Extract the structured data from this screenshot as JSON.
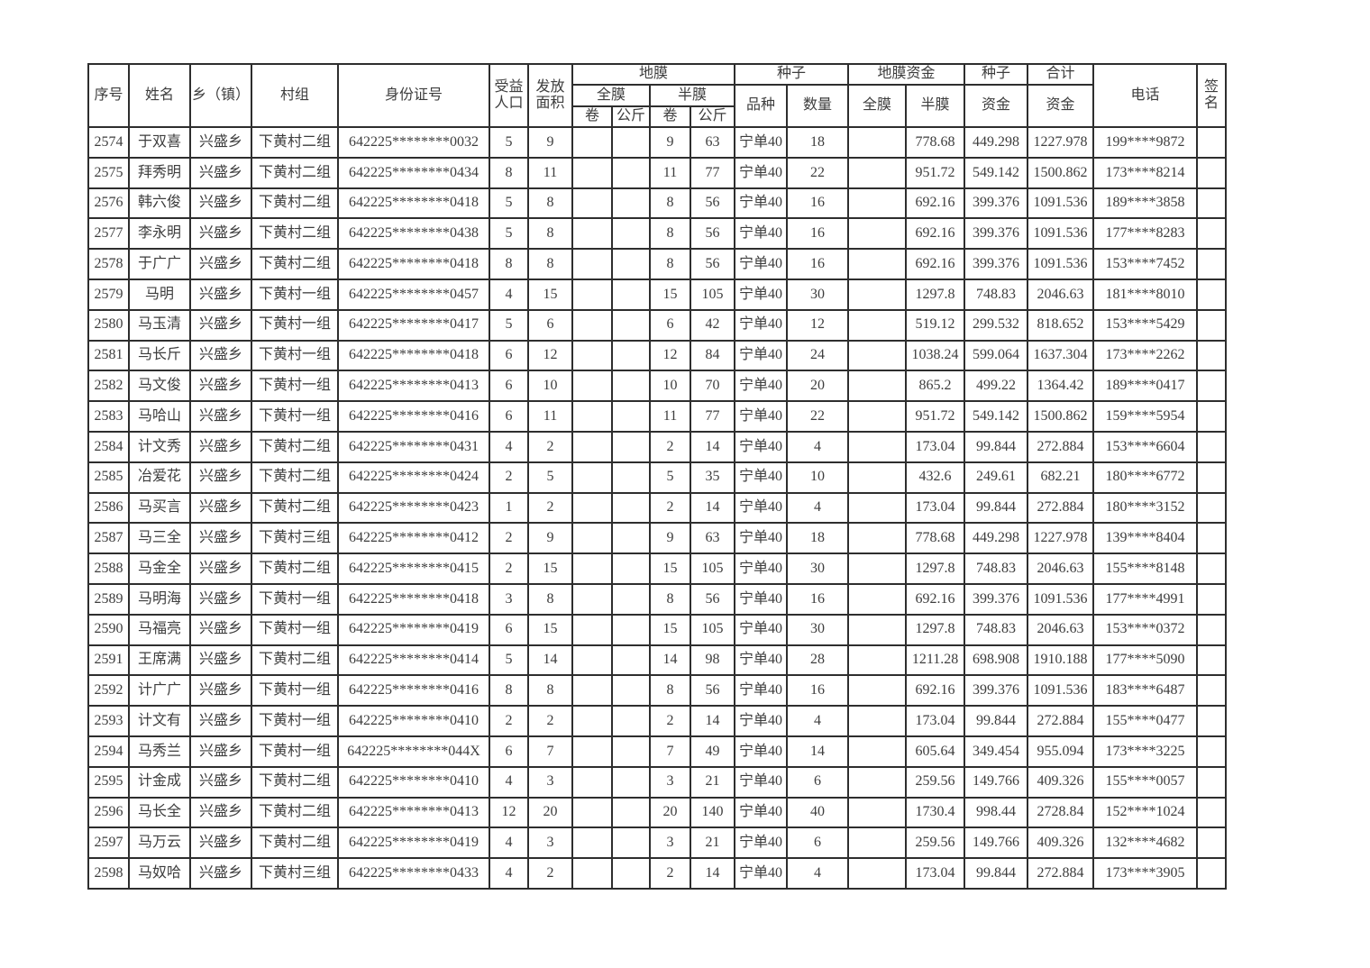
{
  "table": {
    "header": {
      "serial": "序号",
      "name": "姓名",
      "township": "乡（镇）",
      "village": "村组",
      "id_number": "身份证号",
      "beneficiary_population": "受益\n人口",
      "distribution_area": "发放\n面积",
      "plastic_film": "地膜",
      "full_film": "全膜",
      "half_film": "半膜",
      "roll": "卷",
      "kg": "公斤",
      "seed": "种子",
      "variety": "品种",
      "quantity": "数量",
      "film_fund": "地膜资金",
      "fund": "资金",
      "total": "合计",
      "phone": "电话",
      "signature": "签\n名"
    },
    "rows": [
      [
        "2574",
        "于双喜",
        "兴盛乡",
        "下黄村二组",
        "642225********0032",
        "5",
        "9",
        "",
        "",
        "9",
        "63",
        "宁单40",
        "18",
        "",
        "778.68",
        "449.298",
        "1227.978",
        "199****9872",
        ""
      ],
      [
        "2575",
        "拜秀明",
        "兴盛乡",
        "下黄村二组",
        "642225********0434",
        "8",
        "11",
        "",
        "",
        "11",
        "77",
        "宁单40",
        "22",
        "",
        "951.72",
        "549.142",
        "1500.862",
        "173****8214",
        ""
      ],
      [
        "2576",
        "韩六俊",
        "兴盛乡",
        "下黄村二组",
        "642225********0418",
        "5",
        "8",
        "",
        "",
        "8",
        "56",
        "宁单40",
        "16",
        "",
        "692.16",
        "399.376",
        "1091.536",
        "189****3858",
        ""
      ],
      [
        "2577",
        "李永明",
        "兴盛乡",
        "下黄村二组",
        "642225********0438",
        "5",
        "8",
        "",
        "",
        "8",
        "56",
        "宁单40",
        "16",
        "",
        "692.16",
        "399.376",
        "1091.536",
        "177****8283",
        ""
      ],
      [
        "2578",
        "于广广",
        "兴盛乡",
        "下黄村二组",
        "642225********0418",
        "8",
        "8",
        "",
        "",
        "8",
        "56",
        "宁单40",
        "16",
        "",
        "692.16",
        "399.376",
        "1091.536",
        "153****7452",
        ""
      ],
      [
        "2579",
        "马明",
        "兴盛乡",
        "下黄村一组",
        "642225********0457",
        "4",
        "15",
        "",
        "",
        "15",
        "105",
        "宁单40",
        "30",
        "",
        "1297.8",
        "748.83",
        "2046.63",
        "181****8010",
        ""
      ],
      [
        "2580",
        "马玉清",
        "兴盛乡",
        "下黄村一组",
        "642225********0417",
        "5",
        "6",
        "",
        "",
        "6",
        "42",
        "宁单40",
        "12",
        "",
        "519.12",
        "299.532",
        "818.652",
        "153****5429",
        ""
      ],
      [
        "2581",
        "马长斤",
        "兴盛乡",
        "下黄村一组",
        "642225********0418",
        "6",
        "12",
        "",
        "",
        "12",
        "84",
        "宁单40",
        "24",
        "",
        "1038.24",
        "599.064",
        "1637.304",
        "173****2262",
        ""
      ],
      [
        "2582",
        "马文俊",
        "兴盛乡",
        "下黄村一组",
        "642225********0413",
        "6",
        "10",
        "",
        "",
        "10",
        "70",
        "宁单40",
        "20",
        "",
        "865.2",
        "499.22",
        "1364.42",
        "189****0417",
        ""
      ],
      [
        "2583",
        "马哈山",
        "兴盛乡",
        "下黄村一组",
        "642225********0416",
        "6",
        "11",
        "",
        "",
        "11",
        "77",
        "宁单40",
        "22",
        "",
        "951.72",
        "549.142",
        "1500.862",
        "159****5954",
        ""
      ],
      [
        "2584",
        "计文秀",
        "兴盛乡",
        "下黄村二组",
        "642225********0431",
        "4",
        "2",
        "",
        "",
        "2",
        "14",
        "宁单40",
        "4",
        "",
        "173.04",
        "99.844",
        "272.884",
        "153****6604",
        ""
      ],
      [
        "2585",
        "冶爱花",
        "兴盛乡",
        "下黄村二组",
        "642225********0424",
        "2",
        "5",
        "",
        "",
        "5",
        "35",
        "宁单40",
        "10",
        "",
        "432.6",
        "249.61",
        "682.21",
        "180****6772",
        ""
      ],
      [
        "2586",
        "马买言",
        "兴盛乡",
        "下黄村二组",
        "642225********0423",
        "1",
        "2",
        "",
        "",
        "2",
        "14",
        "宁单40",
        "4",
        "",
        "173.04",
        "99.844",
        "272.884",
        "180****3152",
        ""
      ],
      [
        "2587",
        "马三全",
        "兴盛乡",
        "下黄村三组",
        "642225********0412",
        "2",
        "9",
        "",
        "",
        "9",
        "63",
        "宁单40",
        "18",
        "",
        "778.68",
        "449.298",
        "1227.978",
        "139****8404",
        ""
      ],
      [
        "2588",
        "马金全",
        "兴盛乡",
        "下黄村二组",
        "642225********0415",
        "2",
        "15",
        "",
        "",
        "15",
        "105",
        "宁单40",
        "30",
        "",
        "1297.8",
        "748.83",
        "2046.63",
        "155****8148",
        ""
      ],
      [
        "2589",
        "马明海",
        "兴盛乡",
        "下黄村一组",
        "642225********0418",
        "3",
        "8",
        "",
        "",
        "8",
        "56",
        "宁单40",
        "16",
        "",
        "692.16",
        "399.376",
        "1091.536",
        "177****4991",
        ""
      ],
      [
        "2590",
        "马福亮",
        "兴盛乡",
        "下黄村一组",
        "642225********0419",
        "6",
        "15",
        "",
        "",
        "15",
        "105",
        "宁单40",
        "30",
        "",
        "1297.8",
        "748.83",
        "2046.63",
        "153****0372",
        ""
      ],
      [
        "2591",
        "王席满",
        "兴盛乡",
        "下黄村二组",
        "642225********0414",
        "5",
        "14",
        "",
        "",
        "14",
        "98",
        "宁单40",
        "28",
        "",
        "1211.28",
        "698.908",
        "1910.188",
        "177****5090",
        ""
      ],
      [
        "2592",
        "计广广",
        "兴盛乡",
        "下黄村一组",
        "642225********0416",
        "8",
        "8",
        "",
        "",
        "8",
        "56",
        "宁单40",
        "16",
        "",
        "692.16",
        "399.376",
        "1091.536",
        "183****6487",
        ""
      ],
      [
        "2593",
        "计文有",
        "兴盛乡",
        "下黄村一组",
        "642225********0410",
        "2",
        "2",
        "",
        "",
        "2",
        "14",
        "宁单40",
        "4",
        "",
        "173.04",
        "99.844",
        "272.884",
        "155****0477",
        ""
      ],
      [
        "2594",
        "马秀兰",
        "兴盛乡",
        "下黄村一组",
        "642225********044X",
        "6",
        "7",
        "",
        "",
        "7",
        "49",
        "宁单40",
        "14",
        "",
        "605.64",
        "349.454",
        "955.094",
        "173****3225",
        ""
      ],
      [
        "2595",
        "计金成",
        "兴盛乡",
        "下黄村二组",
        "642225********0410",
        "4",
        "3",
        "",
        "",
        "3",
        "21",
        "宁单40",
        "6",
        "",
        "259.56",
        "149.766",
        "409.326",
        "155****0057",
        ""
      ],
      [
        "2596",
        "马长全",
        "兴盛乡",
        "下黄村二组",
        "642225********0413",
        "12",
        "20",
        "",
        "",
        "20",
        "140",
        "宁单40",
        "40",
        "",
        "1730.4",
        "998.44",
        "2728.84",
        "152****1024",
        ""
      ],
      [
        "2597",
        "马万云",
        "兴盛乡",
        "下黄村二组",
        "642225********0419",
        "4",
        "3",
        "",
        "",
        "3",
        "21",
        "宁单40",
        "6",
        "",
        "259.56",
        "149.766",
        "409.326",
        "132****4682",
        ""
      ],
      [
        "2598",
        "马奴哈",
        "兴盛乡",
        "下黄村三组",
        "642225********0433",
        "4",
        "2",
        "",
        "",
        "2",
        "14",
        "宁单40",
        "4",
        "",
        "173.04",
        "99.844",
        "272.884",
        "173****3905",
        ""
      ]
    ]
  }
}
